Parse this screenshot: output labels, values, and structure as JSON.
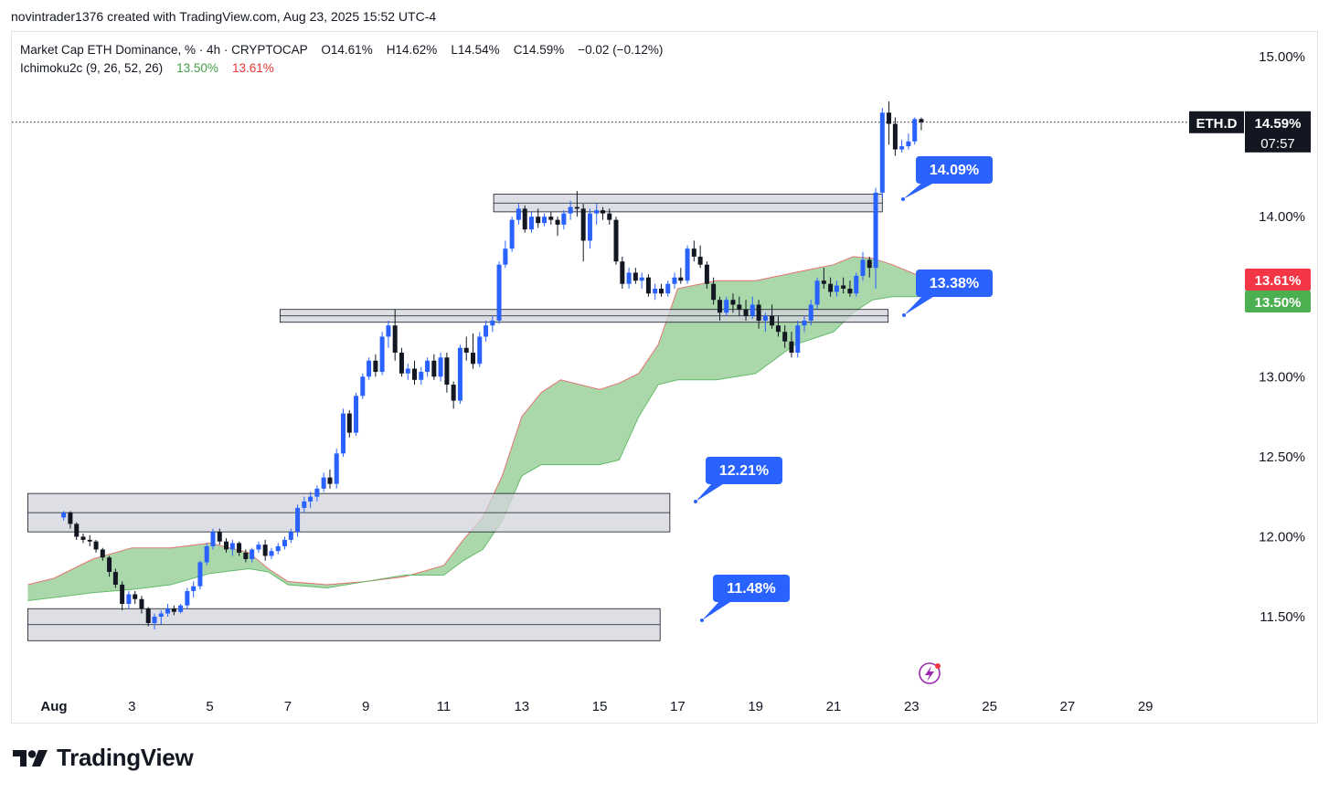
{
  "header": {
    "created_by": "novintrader1376 created with TradingView.com, Aug 23, 2025 15:52 UTC-4"
  },
  "legend": {
    "symbol_line": "Market Cap ETH Dominance, % · 4h · CRYPTOCAP",
    "ohlc": {
      "open": "O14.61%",
      "high": "H14.62%",
      "low": "L14.54%",
      "close": "C14.59%",
      "change": "−0.02 (−0.12%)"
    },
    "indicator": "Ichimoku2c (9, 26, 52, 26)",
    "indicator_val1": "13.50%",
    "indicator_val2": "13.61%"
  },
  "price_badges": {
    "symbol": "ETH.D",
    "last_price": "14.59%",
    "countdown": "07:57",
    "cloud_top": "13.61%",
    "cloud_bottom": "13.50%"
  },
  "annotations": [
    {
      "text": "14.09%",
      "value": 14.09
    },
    {
      "text": "13.38%",
      "value": 13.38
    },
    {
      "text": "12.21%",
      "value": 12.21
    },
    {
      "text": "11.48%",
      "value": 11.48
    }
  ],
  "brand": {
    "name": "TradingView"
  },
  "colors": {
    "up": "#2962ff",
    "down": "#131722",
    "cloud_fill": "#a5d6a7",
    "cloud_edge": "#e57373",
    "zone_fill": "#d1d4dc",
    "badge": "#2962ff",
    "badge_red": "#f23645",
    "badge_green": "#4caf50"
  },
  "chart_data": {
    "type": "candlestick",
    "symbol": "ETH.D",
    "timeframe": "4h",
    "ylim": [
      11.13,
      15.2
    ],
    "y_ticks": [
      "15.00%",
      "14.00%",
      "13.00%",
      "12.50%",
      "12.00%",
      "11.50%"
    ],
    "x_ticks": [
      "Aug",
      "3",
      "5",
      "7",
      "9",
      "11",
      "13",
      "15",
      "17",
      "19",
      "21",
      "23",
      "25",
      "27",
      "29"
    ],
    "x_range_days": [
      0.33,
      30.5
    ],
    "last_price": 14.59,
    "candles": [
      [
        1.25,
        12.12,
        12.16,
        12.1,
        12.15
      ],
      [
        1.42,
        12.15,
        12.16,
        12.05,
        12.08
      ],
      [
        1.58,
        12.08,
        12.09,
        11.98,
        12.0
      ],
      [
        1.75,
        12.0,
        12.02,
        11.96,
        11.98
      ],
      [
        1.92,
        11.98,
        12.01,
        11.94,
        11.97
      ],
      [
        2.08,
        11.97,
        11.98,
        11.9,
        11.92
      ],
      [
        2.25,
        11.92,
        11.93,
        11.85,
        11.87
      ],
      [
        2.42,
        11.87,
        11.88,
        11.75,
        11.78
      ],
      [
        2.58,
        11.78,
        11.8,
        11.68,
        11.7
      ],
      [
        2.75,
        11.7,
        11.72,
        11.54,
        11.58
      ],
      [
        2.92,
        11.58,
        11.66,
        11.55,
        11.64
      ],
      [
        3.08,
        11.64,
        11.66,
        11.58,
        11.61
      ],
      [
        3.25,
        11.61,
        11.63,
        11.52,
        11.55
      ],
      [
        3.42,
        11.55,
        11.56,
        11.44,
        11.46
      ],
      [
        3.58,
        11.46,
        11.52,
        11.42,
        11.5
      ],
      [
        3.75,
        11.5,
        11.54,
        11.45,
        11.52
      ],
      [
        3.92,
        11.52,
        11.58,
        11.5,
        11.55
      ],
      [
        4.08,
        11.55,
        11.57,
        11.51,
        11.53
      ],
      [
        4.25,
        11.53,
        11.58,
        11.52,
        11.57
      ],
      [
        4.42,
        11.57,
        11.68,
        11.55,
        11.66
      ],
      [
        4.58,
        11.66,
        11.72,
        11.62,
        11.69
      ],
      [
        4.75,
        11.69,
        11.85,
        11.67,
        11.84
      ],
      [
        4.92,
        11.84,
        11.96,
        11.82,
        11.94
      ],
      [
        5.08,
        11.94,
        12.05,
        11.92,
        12.03
      ],
      [
        5.25,
        12.03,
        12.05,
        11.95,
        11.97
      ],
      [
        5.42,
        11.97,
        11.99,
        11.9,
        11.92
      ],
      [
        5.58,
        11.92,
        11.98,
        11.88,
        11.96
      ],
      [
        5.75,
        11.96,
        11.97,
        11.88,
        11.9
      ],
      [
        5.92,
        11.9,
        11.92,
        11.84,
        11.86
      ],
      [
        6.08,
        11.86,
        11.93,
        11.84,
        11.92
      ],
      [
        6.25,
        11.92,
        11.97,
        11.9,
        11.95
      ],
      [
        6.42,
        11.95,
        11.98,
        11.85,
        11.88
      ],
      [
        6.58,
        11.88,
        11.93,
        11.86,
        11.91
      ],
      [
        6.75,
        11.91,
        11.96,
        11.89,
        11.94
      ],
      [
        6.92,
        11.94,
        12.0,
        11.92,
        11.98
      ],
      [
        7.08,
        11.98,
        12.05,
        11.96,
        12.03
      ],
      [
        7.25,
        12.03,
        12.2,
        12.0,
        12.18
      ],
      [
        7.42,
        12.18,
        12.25,
        12.15,
        12.22
      ],
      [
        7.58,
        12.22,
        12.28,
        12.18,
        12.25
      ],
      [
        7.75,
        12.25,
        12.32,
        12.22,
        12.3
      ],
      [
        7.92,
        12.3,
        12.4,
        12.28,
        12.37
      ],
      [
        8.08,
        12.37,
        12.42,
        12.3,
        12.33
      ],
      [
        8.25,
        12.33,
        12.55,
        12.3,
        12.52
      ],
      [
        8.42,
        12.52,
        12.8,
        12.5,
        12.77
      ],
      [
        8.58,
        12.77,
        12.79,
        12.62,
        12.65
      ],
      [
        8.75,
        12.65,
        12.9,
        12.63,
        12.88
      ],
      [
        8.92,
        12.88,
        13.02,
        12.86,
        13.0
      ],
      [
        9.08,
        13.0,
        13.12,
        12.98,
        13.1
      ],
      [
        9.25,
        13.1,
        13.14,
        13.0,
        13.03
      ],
      [
        9.42,
        13.03,
        13.28,
        13.01,
        13.25
      ],
      [
        9.58,
        13.25,
        13.35,
        13.18,
        13.32
      ],
      [
        9.75,
        13.32,
        13.42,
        13.1,
        13.15
      ],
      [
        9.92,
        13.15,
        13.18,
        13.0,
        13.02
      ],
      [
        10.08,
        13.02,
        13.08,
        12.98,
        13.05
      ],
      [
        10.25,
        13.05,
        13.1,
        12.95,
        12.98
      ],
      [
        10.42,
        12.98,
        13.06,
        12.95,
        13.03
      ],
      [
        10.58,
        13.03,
        13.12,
        13.0,
        13.1
      ],
      [
        10.75,
        13.1,
        13.14,
        12.98,
        13.0
      ],
      [
        10.92,
        13.0,
        13.15,
        12.97,
        13.12
      ],
      [
        11.08,
        13.12,
        13.15,
        12.9,
        12.95
      ],
      [
        11.25,
        12.95,
        12.97,
        12.8,
        12.85
      ],
      [
        11.42,
        12.85,
        13.2,
        12.83,
        13.18
      ],
      [
        11.58,
        13.18,
        13.25,
        13.1,
        13.15
      ],
      [
        11.75,
        13.15,
        13.27,
        13.05,
        13.08
      ],
      [
        11.92,
        13.08,
        13.28,
        13.06,
        13.25
      ],
      [
        12.08,
        13.25,
        13.35,
        13.22,
        13.32
      ],
      [
        12.25,
        13.32,
        13.38,
        13.28,
        13.35
      ],
      [
        12.42,
        13.35,
        13.72,
        13.33,
        13.7
      ],
      [
        12.58,
        13.7,
        13.85,
        13.68,
        13.8
      ],
      [
        12.75,
        13.8,
        14.0,
        13.78,
        13.98
      ],
      [
        12.92,
        13.98,
        14.08,
        13.95,
        14.05
      ],
      [
        13.08,
        14.05,
        14.07,
        13.9,
        13.92
      ],
      [
        13.25,
        13.92,
        14.03,
        13.9,
        14.0
      ],
      [
        13.42,
        14.0,
        14.05,
        13.93,
        13.96
      ],
      [
        13.58,
        13.96,
        14.02,
        13.94,
        14.0
      ],
      [
        13.75,
        14.0,
        14.03,
        13.95,
        13.98
      ],
      [
        13.92,
        13.98,
        14.0,
        13.88,
        13.95
      ],
      [
        14.08,
        13.95,
        14.04,
        13.92,
        14.02
      ],
      [
        14.25,
        14.02,
        14.1,
        13.98,
        14.06
      ],
      [
        14.42,
        14.06,
        14.16,
        14.0,
        14.05
      ],
      [
        14.58,
        14.05,
        14.08,
        13.72,
        13.85
      ],
      [
        14.75,
        13.85,
        14.05,
        13.8,
        14.02
      ],
      [
        14.92,
        14.02,
        14.08,
        13.95,
        14.04
      ],
      [
        15.08,
        14.04,
        14.06,
        13.98,
        14.02
      ],
      [
        15.25,
        14.02,
        14.05,
        13.95,
        13.98
      ],
      [
        15.42,
        13.98,
        14.0,
        13.7,
        13.72
      ],
      [
        15.58,
        13.72,
        13.75,
        13.55,
        13.58
      ],
      [
        15.75,
        13.58,
        13.68,
        13.55,
        13.65
      ],
      [
        15.92,
        13.65,
        13.68,
        13.58,
        13.6
      ],
      [
        16.08,
        13.6,
        13.65,
        13.55,
        13.62
      ],
      [
        16.25,
        13.62,
        13.64,
        13.5,
        13.52
      ],
      [
        16.42,
        13.52,
        13.58,
        13.48,
        13.55
      ],
      [
        16.58,
        13.55,
        13.58,
        13.5,
        13.52
      ],
      [
        16.75,
        13.52,
        13.6,
        13.5,
        13.58
      ],
      [
        16.92,
        13.58,
        13.65,
        13.55,
        13.62
      ],
      [
        17.08,
        13.62,
        13.68,
        13.58,
        13.6
      ],
      [
        17.25,
        13.6,
        13.82,
        13.58,
        13.8
      ],
      [
        17.42,
        13.8,
        13.85,
        13.72,
        13.75
      ],
      [
        17.58,
        13.75,
        13.82,
        13.68,
        13.7
      ],
      [
        17.75,
        13.7,
        13.72,
        13.55,
        13.58
      ],
      [
        17.92,
        13.58,
        13.62,
        13.45,
        13.48
      ],
      [
        18.08,
        13.48,
        13.5,
        13.35,
        13.4
      ],
      [
        18.25,
        13.4,
        13.5,
        13.38,
        13.48
      ],
      [
        18.42,
        13.48,
        13.52,
        13.4,
        13.45
      ],
      [
        18.58,
        13.45,
        13.5,
        13.38,
        13.42
      ],
      [
        18.75,
        13.42,
        13.48,
        13.35,
        13.38
      ],
      [
        18.92,
        13.38,
        13.5,
        13.36,
        13.45
      ],
      [
        19.08,
        13.45,
        13.48,
        13.3,
        13.35
      ],
      [
        19.25,
        13.35,
        13.4,
        13.28,
        13.38
      ],
      [
        19.42,
        13.38,
        13.45,
        13.3,
        13.32
      ],
      [
        19.58,
        13.32,
        13.38,
        13.25,
        13.28
      ],
      [
        19.75,
        13.28,
        13.32,
        13.18,
        13.22
      ],
      [
        19.92,
        13.22,
        13.28,
        13.12,
        13.15
      ],
      [
        20.08,
        13.15,
        13.35,
        13.12,
        13.32
      ],
      [
        20.25,
        13.32,
        13.38,
        13.28,
        13.35
      ],
      [
        20.42,
        13.35,
        13.48,
        13.32,
        13.45
      ],
      [
        20.58,
        13.45,
        13.62,
        13.42,
        13.6
      ],
      [
        20.75,
        13.6,
        13.68,
        13.55,
        13.58
      ],
      [
        20.92,
        13.58,
        13.62,
        13.5,
        13.53
      ],
      [
        21.08,
        13.53,
        13.6,
        13.5,
        13.57
      ],
      [
        21.25,
        13.57,
        13.62,
        13.52,
        13.55
      ],
      [
        21.42,
        13.55,
        13.6,
        13.5,
        13.52
      ],
      [
        21.58,
        13.52,
        13.65,
        13.5,
        13.63
      ],
      [
        21.75,
        13.63,
        13.78,
        13.6,
        13.73
      ],
      [
        21.92,
        13.73,
        13.75,
        13.62,
        13.68
      ],
      [
        22.08,
        13.68,
        14.18,
        13.55,
        14.15
      ],
      [
        22.25,
        14.15,
        14.68,
        14.12,
        14.65
      ],
      [
        22.42,
        14.65,
        14.72,
        14.45,
        14.58
      ],
      [
        22.58,
        14.58,
        14.62,
        14.38,
        14.42
      ],
      [
        22.75,
        14.42,
        14.48,
        14.4,
        14.44
      ],
      [
        22.92,
        14.44,
        14.52,
        14.42,
        14.47
      ],
      [
        23.08,
        14.47,
        14.62,
        14.45,
        14.61
      ],
      [
        23.25,
        14.61,
        14.62,
        14.54,
        14.59
      ]
    ],
    "ichimoku_cloud": {
      "x": [
        0.33,
        1.0,
        2.0,
        3.0,
        4.0,
        5.0,
        6.0,
        6.5,
        7.0,
        8.0,
        9.0,
        10.0,
        11.0,
        11.5,
        12.0,
        12.5,
        13.0,
        13.5,
        14.0,
        15.0,
        15.5,
        16.0,
        16.5,
        17.0,
        18.0,
        19.0,
        20.0,
        21.0,
        21.5,
        22.0,
        22.5,
        23.5
      ],
      "span_a": [
        11.7,
        11.74,
        11.86,
        11.93,
        11.93,
        11.96,
        11.9,
        11.8,
        11.72,
        11.7,
        11.72,
        11.75,
        11.82,
        11.98,
        12.12,
        12.38,
        12.75,
        12.9,
        12.98,
        12.92,
        12.96,
        13.02,
        13.2,
        13.55,
        13.6,
        13.6,
        13.65,
        13.7,
        13.75,
        13.74,
        13.7,
        13.6
      ],
      "span_b": [
        11.6,
        11.62,
        11.65,
        11.67,
        11.7,
        11.77,
        11.8,
        11.78,
        11.7,
        11.68,
        11.72,
        11.76,
        11.76,
        11.85,
        11.92,
        12.1,
        12.38,
        12.45,
        12.45,
        12.45,
        12.48,
        12.75,
        12.95,
        12.98,
        12.98,
        13.02,
        13.2,
        13.28,
        13.4,
        13.48,
        13.5,
        13.5
      ]
    },
    "zones": [
      {
        "low": 14.03,
        "high": 14.14,
        "x_start": 12.28,
        "x_end": 22.25
      },
      {
        "low": 13.34,
        "high": 13.42,
        "x_start": 6.8,
        "x_end": 22.4
      },
      {
        "low": 12.03,
        "high": 12.27,
        "x_start": 0.33,
        "x_end": 16.8
      },
      {
        "low": 11.35,
        "high": 11.55,
        "x_start": 0.33,
        "x_end": 16.55
      }
    ]
  }
}
